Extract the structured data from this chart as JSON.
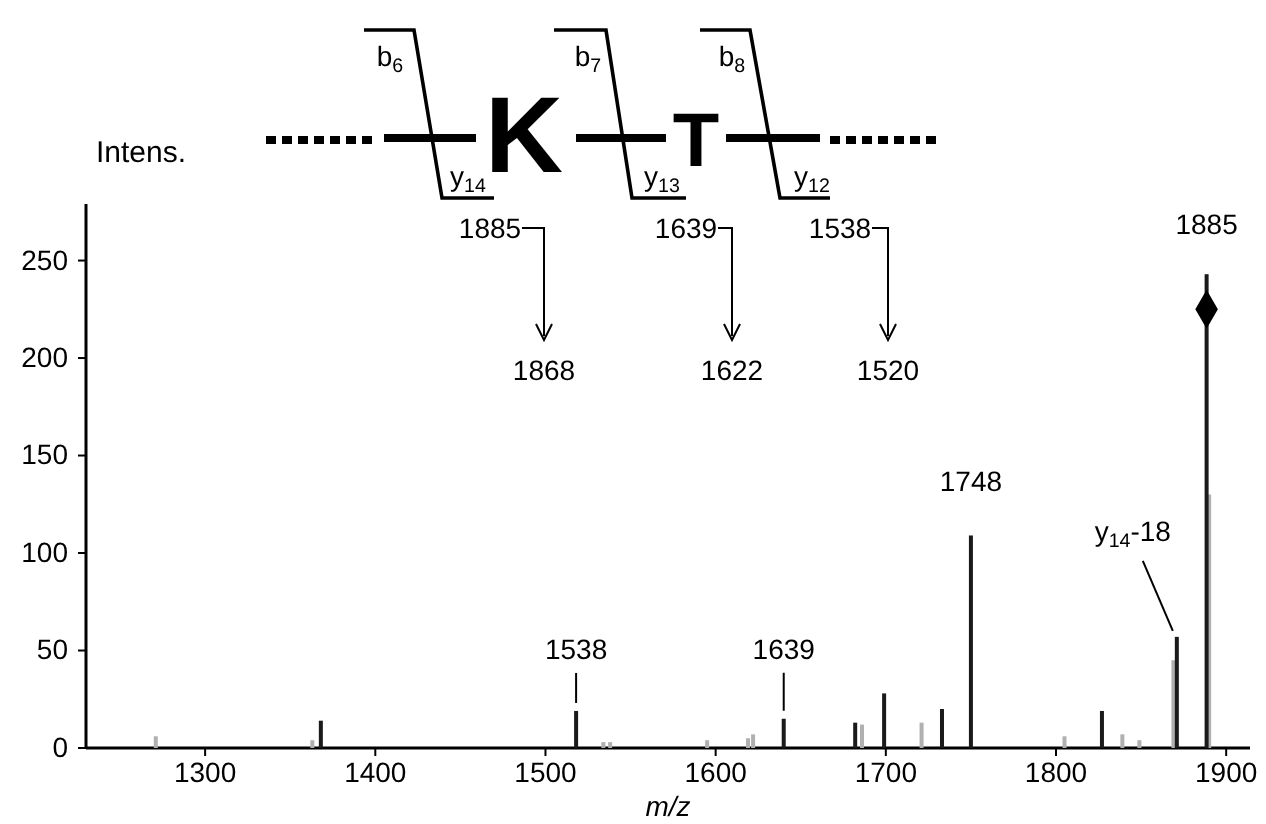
{
  "chart_data": {
    "type": "bar",
    "xlabel": "m/z",
    "ylabel": "Intens.",
    "xlim": [
      1230,
      1914
    ],
    "ylim": [
      0,
      279
    ],
    "xticks": [
      1300,
      1400,
      1500,
      1600,
      1700,
      1800,
      1900
    ],
    "yticks": [
      0,
      50,
      100,
      150,
      200,
      250
    ],
    "series": [
      {
        "color": "#b0b0b0",
        "x": [
          1271,
          1363,
          1534,
          1538,
          1595,
          1619,
          1622,
          1686,
          1721,
          1805,
          1839,
          1849,
          1869,
          1890
        ],
        "values": [
          6,
          4,
          3,
          3,
          4,
          5,
          7,
          12,
          13,
          6,
          7,
          4,
          45,
          130
        ]
      },
      {
        "color": "#1a1a1a",
        "x": [
          1368,
          1518,
          1640,
          1682,
          1699,
          1733,
          1750,
          1827,
          1871,
          1888.5
        ],
        "values": [
          14,
          19,
          15,
          13,
          28,
          20,
          109,
          19,
          57,
          243
        ]
      },
      {
        "type": "scatter",
        "color": "#000000",
        "marker": "diamond",
        "x": [
          1888.5
        ],
        "values": [
          225
        ]
      }
    ],
    "annotations": [
      {
        "text": "1885",
        "x": 1888.5,
        "y": 243
      },
      {
        "text": "1748",
        "x": 1750,
        "y": 109
      },
      {
        "text": "y$_{14}$-18",
        "x": 1871,
        "y": 57
      },
      {
        "text": "1639",
        "x": 1640,
        "y": 15
      },
      {
        "text": "1538",
        "x": 1518,
        "y": 19
      },
      "1885",
      "1868",
      "1639",
      "1622",
      "1538",
      "1520",
      "K",
      "T",
      "b$_{6}$",
      "b$_{7}$",
      "b$_{8}$",
      "y$_{14}$",
      "y$_{13}$",
      "y$_{12}$"
    ]
  }
}
